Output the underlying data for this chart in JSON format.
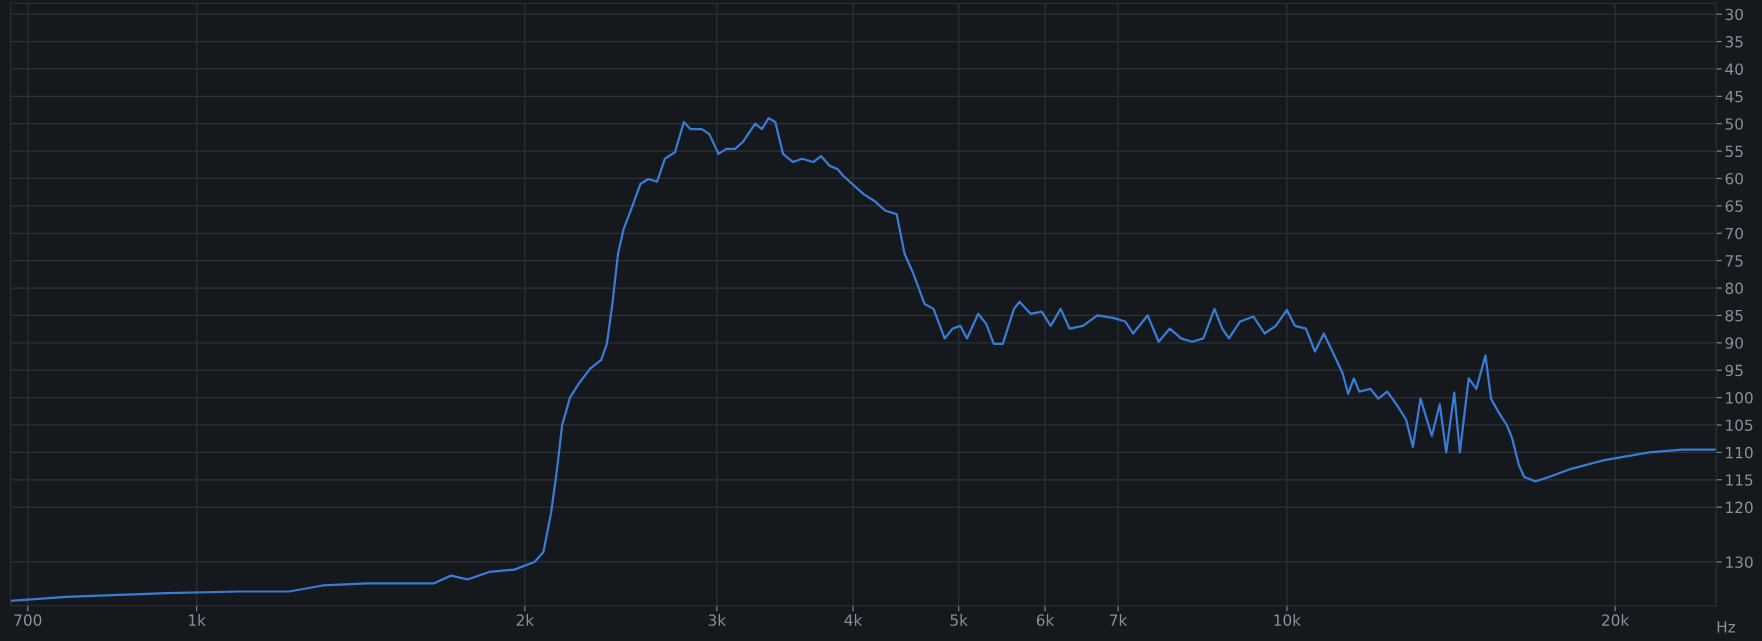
{
  "chart_data": {
    "type": "line",
    "xlabel": "Hz",
    "log": "x",
    "grid": true,
    "marker": "none",
    "line_style": "solid",
    "xlim": [
      675,
      24760
    ],
    "ylim": [
      138,
      28
    ],
    "xticks": [
      700,
      {
        "value": 1000,
        "label": "1k"
      },
      {
        "value": 2000,
        "label": "2k"
      },
      {
        "value": 3000,
        "label": "3k"
      },
      {
        "value": 4000,
        "label": "4k"
      },
      {
        "value": 5000,
        "label": "5k"
      },
      {
        "value": 6000,
        "label": "6k"
      },
      {
        "value": 7000,
        "label": "7k"
      },
      {
        "value": 10000,
        "label": "10k"
      },
      {
        "value": 20000,
        "label": "20k"
      }
    ],
    "yticks": [
      30,
      35,
      40,
      45,
      50,
      55,
      60,
      65,
      70,
      75,
      80,
      85,
      90,
      95,
      100,
      105,
      110,
      115,
      120,
      130
    ],
    "series": [
      {
        "color": "#3a7bd5",
        "x": [
          675,
          759,
          938,
          1094,
          1216,
          1305,
          1433,
          1651,
          1711,
          1772,
          1857,
          1956,
          2041,
          2080,
          2114,
          2139,
          2164,
          2200,
          2242,
          2296,
          2350,
          2378,
          2406,
          2435,
          2464,
          2505,
          2553,
          2595,
          2644,
          2688,
          2746,
          2798,
          2838,
          2906,
          2953,
          3010,
          3060,
          3118,
          3170,
          3253,
          3299,
          3346,
          3394,
          3450,
          3524,
          3591,
          3677,
          3738,
          3809,
          3872,
          3917,
          3973,
          4087,
          4184,
          4284,
          4386,
          4459,
          4544,
          4652,
          4741,
          4854,
          4935,
          5017,
          5088,
          5210,
          5297,
          5385,
          5488,
          5619,
          5685,
          5820,
          5959,
          6072,
          6201,
          6319,
          6500,
          6702,
          6942,
          7107,
          7226,
          7451,
          7628,
          7809,
          7996,
          8187,
          8382,
          8581,
          8724,
          8848,
          9059,
          9318,
          9541,
          9768,
          10000,
          10170,
          10410,
          10610,
          10810,
          11010,
          11250,
          11380,
          11520,
          11650,
          11930,
          12130,
          12360,
          12600,
          12860,
          13050,
          13260,
          13580,
          13810,
          14000,
          14240,
          14410,
          14680,
          14920,
          15210,
          15390,
          15640,
          15910,
          16090,
          16320,
          16510,
          16900,
          17390,
          18230,
          19560,
          21490,
          23070,
          24760
        ],
        "values": [
          137.1,
          136.4,
          135.7,
          135.4,
          135.4,
          134.3,
          133.9,
          133.9,
          132.5,
          133.2,
          131.8,
          131.4,
          130,
          128.2,
          121,
          113.6,
          105,
          100,
          97.4,
          94.7,
          93.1,
          90.2,
          82.9,
          73.7,
          69.2,
          65.5,
          61,
          60.1,
          60.6,
          56.4,
          55.2,
          49.7,
          51,
          51,
          51.9,
          55.5,
          54.6,
          54.6,
          53.3,
          50,
          51,
          49,
          49.7,
          55.5,
          57,
          56.4,
          57,
          55.9,
          57.7,
          58.3,
          59.5,
          60.6,
          62.8,
          64.1,
          65.9,
          66.5,
          73.7,
          77.4,
          82.9,
          83.8,
          89.2,
          87.4,
          86.9,
          89.2,
          84.7,
          86.5,
          90.2,
          90.2,
          83.8,
          82.5,
          84.7,
          84.3,
          86.9,
          83.8,
          87.4,
          86.9,
          85,
          85.5,
          86.1,
          88.3,
          85,
          89.8,
          87.4,
          89.2,
          89.8,
          89.2,
          83.8,
          87.4,
          89.2,
          86.1,
          85.2,
          88.3,
          86.9,
          84,
          86.9,
          87.4,
          91.6,
          88.3,
          91.6,
          95.6,
          99.3,
          96.5,
          98.9,
          98.4,
          100.2,
          98.9,
          101.2,
          104,
          109,
          100.2,
          107,
          101.2,
          110,
          99.1,
          110,
          96.5,
          98.4,
          92.3,
          100.2,
          102.7,
          105,
          107.4,
          112.3,
          114.5,
          115.3,
          114.5,
          113,
          111.4,
          110,
          109.5,
          109.5
        ]
      }
    ]
  }
}
